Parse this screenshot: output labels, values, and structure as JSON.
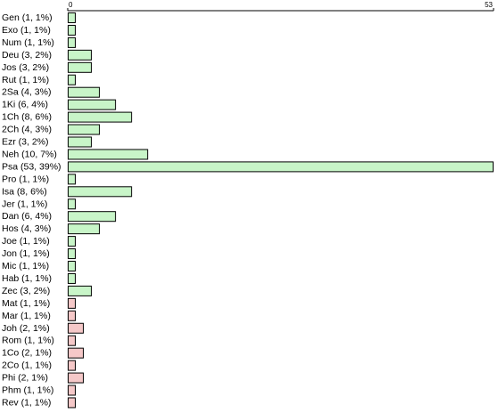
{
  "chart_data": {
    "type": "bar",
    "orientation": "horizontal",
    "xlim": [
      0,
      53
    ],
    "ticks": [
      "0",
      "53"
    ],
    "colors": {
      "ot": "#c8f5c8",
      "nt": "#f5c8c8",
      "edge": "#000000"
    },
    "bars": [
      {
        "label": "Gen (1, 1%)",
        "value": 1,
        "group": "ot"
      },
      {
        "label": "Exo (1, 1%)",
        "value": 1,
        "group": "ot"
      },
      {
        "label": "Num (1, 1%)",
        "value": 1,
        "group": "ot"
      },
      {
        "label": "Deu (3, 2%)",
        "value": 3,
        "group": "ot"
      },
      {
        "label": "Jos (3, 2%)",
        "value": 3,
        "group": "ot"
      },
      {
        "label": "Rut (1, 1%)",
        "value": 1,
        "group": "ot"
      },
      {
        "label": "2Sa (4, 3%)",
        "value": 4,
        "group": "ot"
      },
      {
        "label": "1Ki (6, 4%)",
        "value": 6,
        "group": "ot"
      },
      {
        "label": "1Ch (8, 6%)",
        "value": 8,
        "group": "ot"
      },
      {
        "label": "2Ch (4, 3%)",
        "value": 4,
        "group": "ot"
      },
      {
        "label": "Ezr (3, 2%)",
        "value": 3,
        "group": "ot"
      },
      {
        "label": "Neh (10, 7%)",
        "value": 10,
        "group": "ot"
      },
      {
        "label": "Psa (53, 39%)",
        "value": 53,
        "group": "ot"
      },
      {
        "label": "Pro (1, 1%)",
        "value": 1,
        "group": "ot"
      },
      {
        "label": "Isa (8, 6%)",
        "value": 8,
        "group": "ot"
      },
      {
        "label": "Jer (1, 1%)",
        "value": 1,
        "group": "ot"
      },
      {
        "label": "Dan (6, 4%)",
        "value": 6,
        "group": "ot"
      },
      {
        "label": "Hos (4, 3%)",
        "value": 4,
        "group": "ot"
      },
      {
        "label": "Joe (1, 1%)",
        "value": 1,
        "group": "ot"
      },
      {
        "label": "Jon (1, 1%)",
        "value": 1,
        "group": "ot"
      },
      {
        "label": "Mic (1, 1%)",
        "value": 1,
        "group": "ot"
      },
      {
        "label": "Hab (1, 1%)",
        "value": 1,
        "group": "ot"
      },
      {
        "label": "Zec (3, 2%)",
        "value": 3,
        "group": "ot"
      },
      {
        "label": "Mat (1, 1%)",
        "value": 1,
        "group": "nt"
      },
      {
        "label": "Mar (1, 1%)",
        "value": 1,
        "group": "nt"
      },
      {
        "label": "Joh (2, 1%)",
        "value": 2,
        "group": "nt"
      },
      {
        "label": "Rom (1, 1%)",
        "value": 1,
        "group": "nt"
      },
      {
        "label": "1Co (2, 1%)",
        "value": 2,
        "group": "nt"
      },
      {
        "label": "2Co (1, 1%)",
        "value": 1,
        "group": "nt"
      },
      {
        "label": "Phi (2, 1%)",
        "value": 2,
        "group": "nt"
      },
      {
        "label": "Phm (1, 1%)",
        "value": 1,
        "group": "nt"
      },
      {
        "label": "Rev (1, 1%)",
        "value": 1,
        "group": "nt"
      }
    ]
  }
}
